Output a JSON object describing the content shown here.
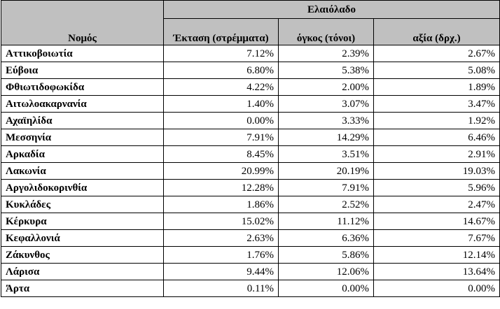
{
  "header": {
    "group_title": "Ελαιόλαδο",
    "name_col": "Νομός",
    "area_col": "Έκταση (στρέμματα)",
    "volume_col": "όγκος (τόνοι)",
    "value_col": "αξία (δρχ.)"
  },
  "rows": [
    {
      "name": "Αττικοβοιωτία",
      "area": "7.12%",
      "volume": "2.39%",
      "value": "2.67%"
    },
    {
      "name": "Εύβοια",
      "area": "6.80%",
      "volume": "5.38%",
      "value": "5.08%"
    },
    {
      "name": "Φθιωτιδοφωκίδα",
      "area": "4.22%",
      "volume": "2.00%",
      "value": "1.89%"
    },
    {
      "name": "Αιτωλοακαρνανία",
      "area": "1.40%",
      "volume": "3.07%",
      "value": "3.47%"
    },
    {
      "name": "Αχαϊηλίδα",
      "area": "0.00%",
      "volume": "3.33%",
      "value": "1.92%"
    },
    {
      "name": "Μεσσηνία",
      "area": "7.91%",
      "volume": "14.29%",
      "value": "6.46%"
    },
    {
      "name": "Αρκαδία",
      "area": "8.45%",
      "volume": "3.51%",
      "value": "2.91%"
    },
    {
      "name": "Λακωνία",
      "area": "20.99%",
      "volume": "20.19%",
      "value": "19.03%"
    },
    {
      "name": "Αργολιδοκορινθία",
      "area": "12.28%",
      "volume": "7.91%",
      "value": "5.96%"
    },
    {
      "name": "Κυκλάδες",
      "area": "1.86%",
      "volume": "2.52%",
      "value": "2.47%"
    },
    {
      "name": "Κέρκυρα",
      "area": "15.02%",
      "volume": "11.12%",
      "value": "14.67%"
    },
    {
      "name": "Κεφαλλονιά",
      "area": "2.63%",
      "volume": "6.36%",
      "value": "7.67%"
    },
    {
      "name": "Ζάκυνθος",
      "area": "1.76%",
      "volume": "5.86%",
      "value": "12.14%"
    },
    {
      "name": "Λάρισα",
      "area": "9.44%",
      "volume": "12.06%",
      "value": "13.64%"
    },
    {
      "name": "Άρτα",
      "area": "0.11%",
      "volume": "0.00%",
      "value": "0.00%"
    }
  ]
}
